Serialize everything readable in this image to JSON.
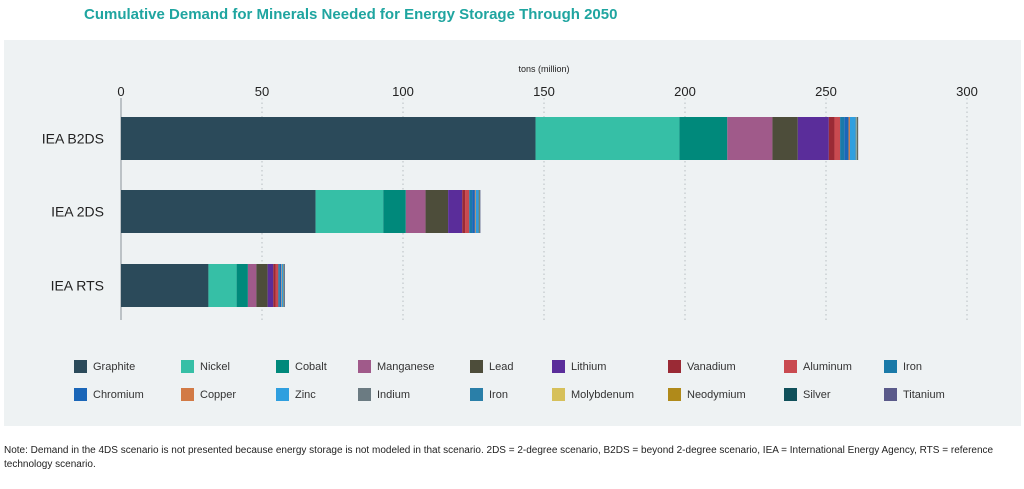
{
  "title": "Cumulative Demand for Minerals Needed for Energy Storage Through 2050",
  "note": "Note: Demand in the 4DS scenario is not presented because energy storage is not modeled in that scenario. 2DS = 2-degree scenario, B2DS = beyond 2-degree scenario, IEA = International Energy Agency, RTS = reference technology scenario.",
  "chart_data": {
    "type": "bar",
    "orientation": "horizontal",
    "stacked": true,
    "axis_title": "tons (million)",
    "xlim": [
      0,
      300
    ],
    "ticks": [
      0,
      50,
      100,
      150,
      200,
      250,
      300
    ],
    "grid": "vertical dotted",
    "legend_position": "bottom",
    "categories": [
      "IEA B2DS",
      "IEA 2DS",
      "IEA RTS"
    ],
    "series": [
      {
        "name": "Graphite",
        "color": "#2b4a5a",
        "values": [
          147,
          69,
          31
        ]
      },
      {
        "name": "Nickel",
        "color": "#36bfa6",
        "values": [
          51,
          24,
          10
        ]
      },
      {
        "name": "Cobalt",
        "color": "#00897b",
        "values": [
          17,
          8,
          4
        ]
      },
      {
        "name": "Manganese",
        "color": "#a05a8a",
        "values": [
          16,
          7,
          3
        ]
      },
      {
        "name": "Lead",
        "color": "#4d4d3a",
        "values": [
          9,
          8,
          4
        ]
      },
      {
        "name": "Lithium",
        "color": "#5a2d9a",
        "values": [
          11,
          5,
          2
        ]
      },
      {
        "name": "Vanadium",
        "color": "#9a2a35",
        "values": [
          2,
          1,
          0.8
        ]
      },
      {
        "name": "Aluminum",
        "color": "#c94a50",
        "values": [
          2,
          1.5,
          1
        ]
      },
      {
        "name": "Iron",
        "color": "#1a7aa8",
        "values": [
          1.5,
          1,
          0.5
        ]
      },
      {
        "name": "Chromium",
        "color": "#1a66b8",
        "values": [
          1.5,
          1,
          0.5
        ]
      },
      {
        "name": "Copper",
        "color": "#d27a45",
        "values": [
          0.5,
          0.3,
          0.2
        ]
      },
      {
        "name": "Zinc",
        "color": "#2f9fdf",
        "values": [
          2,
          1,
          0.5
        ]
      },
      {
        "name": "Indium",
        "color": "#6b7b82",
        "values": [
          0.2,
          0.1,
          0.1
        ]
      },
      {
        "name": "Iron",
        "color": "#2a7fa8",
        "values": [
          0.2,
          0.1,
          0.1
        ]
      },
      {
        "name": "Molybdenum",
        "color": "#d6c05a",
        "values": [
          0.1,
          0.1,
          0.05
        ]
      },
      {
        "name": "Neodymium",
        "color": "#b08a1a",
        "values": [
          0.1,
          0.05,
          0.05
        ]
      },
      {
        "name": "Silver",
        "color": "#10505a",
        "values": [
          0.1,
          0.05,
          0.05
        ]
      },
      {
        "name": "Titanium",
        "color": "#5a5a8a",
        "values": [
          0.1,
          0.05,
          0.05
        ]
      }
    ]
  }
}
